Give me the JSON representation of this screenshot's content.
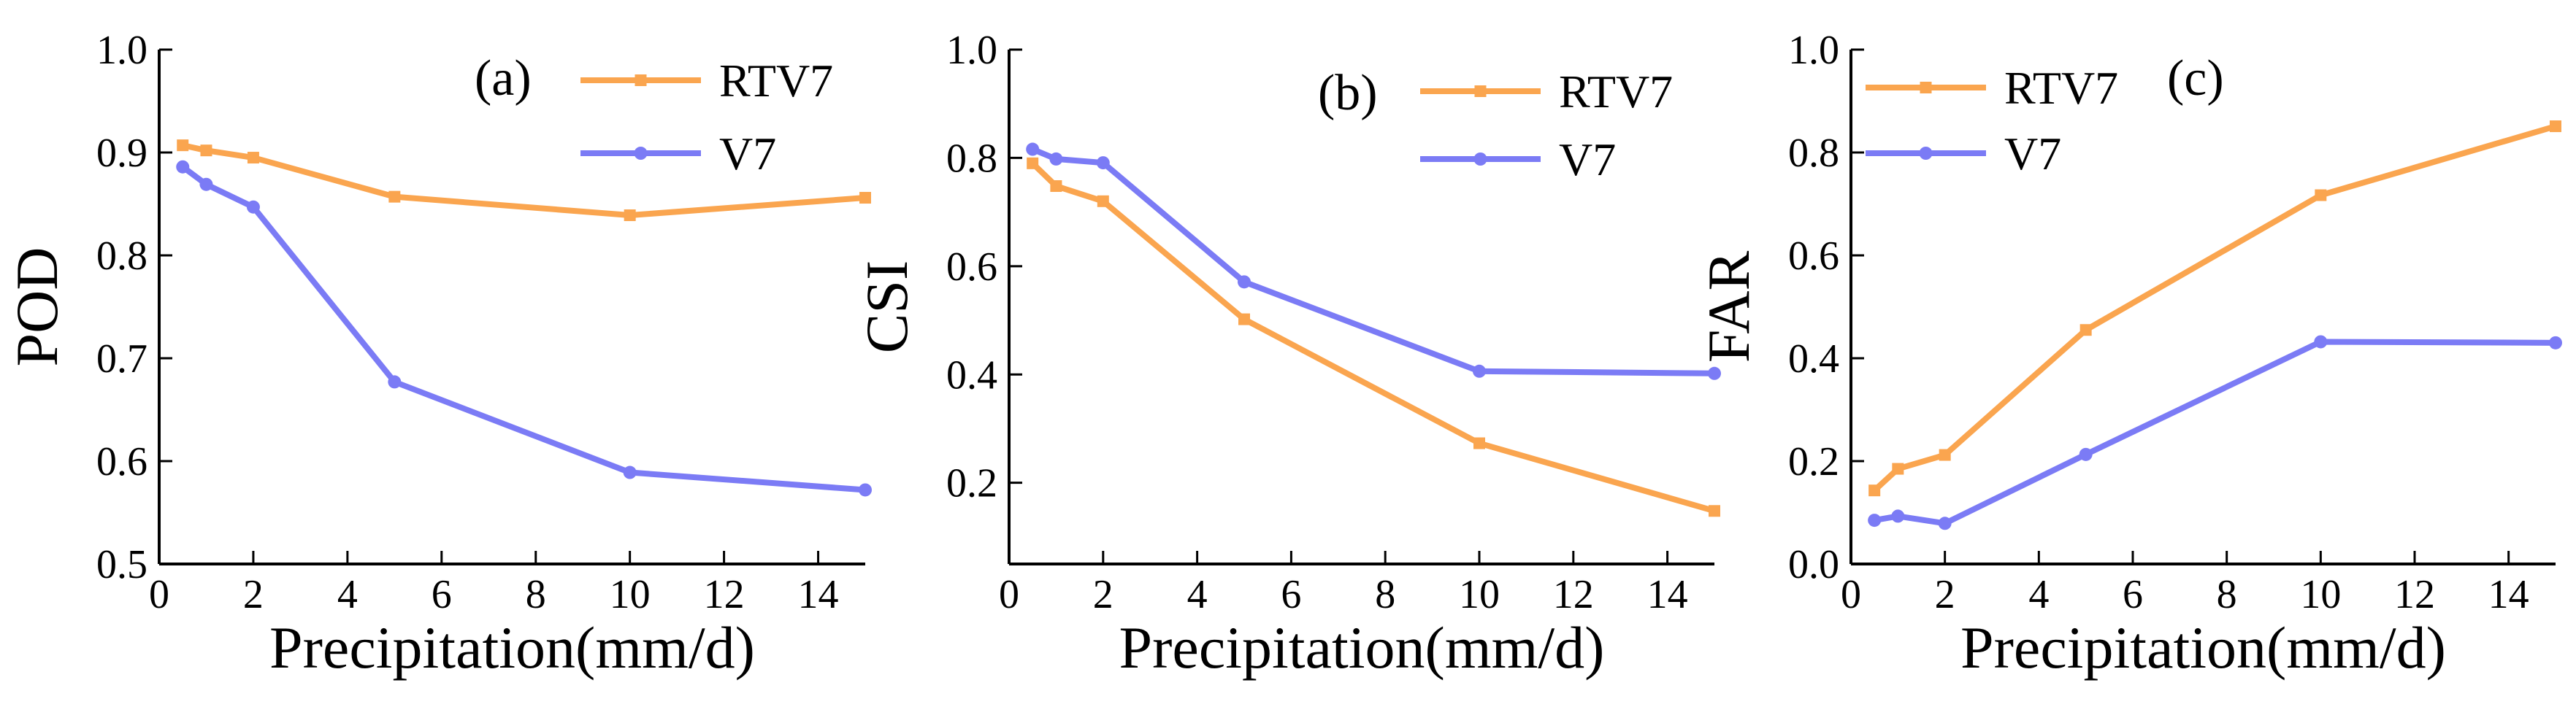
{
  "colors": {
    "rtv7": "#FAA54F",
    "v7": "#7B7BF5",
    "axis": "#000000"
  },
  "chart_data": [
    {
      "type": "line",
      "panel_label": "(a)",
      "xlabel": "Precipitation(mm/d)",
      "ylabel": "POD",
      "xlim": [
        0,
        15
      ],
      "ylim": [
        0.5,
        1.0
      ],
      "xticks": [
        0,
        2,
        4,
        6,
        8,
        10,
        12,
        14
      ],
      "xtick_labels": [
        "0",
        "2",
        "4",
        "6",
        "8",
        "10",
        "12",
        "14"
      ],
      "yticks": [
        0.5,
        0.6,
        0.7,
        0.8,
        0.9,
        1.0
      ],
      "ytick_labels": [
        "0.5",
        "0.6",
        "0.7",
        "0.8",
        "0.9",
        "1.0"
      ],
      "legend_position": "top-right",
      "x": [
        0.5,
        1,
        2,
        5,
        10,
        15
      ],
      "series": [
        {
          "name": "RTV7",
          "key": "rtv7",
          "marker": "square",
          "values": [
            0.907,
            0.902,
            0.895,
            0.857,
            0.839,
            0.856
          ]
        },
        {
          "name": "V7",
          "key": "v7",
          "marker": "circle",
          "values": [
            0.886,
            0.869,
            0.847,
            0.677,
            0.589,
            0.572
          ]
        }
      ]
    },
    {
      "type": "line",
      "panel_label": "(b)",
      "xlabel": "Precipitation(mm/d)",
      "ylabel": "CSI",
      "xlim": [
        0,
        15
      ],
      "ylim": [
        0.05,
        1.0
      ],
      "xticks": [
        0,
        2,
        4,
        6,
        8,
        10,
        12,
        14
      ],
      "xtick_labels": [
        "0",
        "2",
        "4",
        "6",
        "8",
        "10",
        "12",
        "14"
      ],
      "yticks": [
        0.2,
        0.4,
        0.6,
        0.8,
        1.0
      ],
      "ytick_labels": [
        "0.2",
        "0.4",
        "0.6",
        "0.8",
        "1.0"
      ],
      "legend_position": "top-right",
      "x": [
        0.5,
        1,
        2,
        5,
        10,
        15
      ],
      "series": [
        {
          "name": "RTV7",
          "key": "rtv7",
          "marker": "square",
          "values": [
            0.79,
            0.748,
            0.72,
            0.502,
            0.273,
            0.148
          ]
        },
        {
          "name": "V7",
          "key": "v7",
          "marker": "circle",
          "values": [
            0.816,
            0.798,
            0.791,
            0.571,
            0.406,
            0.402
          ]
        }
      ]
    },
    {
      "type": "line",
      "panel_label": "(c)",
      "xlabel": "Precipitation(mm/d)",
      "ylabel": "FAR",
      "xlim": [
        0,
        15
      ],
      "ylim": [
        0.0,
        1.0
      ],
      "xticks": [
        0,
        2,
        4,
        6,
        8,
        10,
        12,
        14
      ],
      "xtick_labels": [
        "0",
        "2",
        "4",
        "6",
        "8",
        "10",
        "12",
        "14"
      ],
      "yticks": [
        0.0,
        0.2,
        0.4,
        0.6,
        0.8,
        1.0
      ],
      "ytick_labels": [
        "0.0",
        "0.2",
        "0.4",
        "0.6",
        "0.8",
        "1.0"
      ],
      "legend_position": "top-left",
      "x": [
        0.5,
        1,
        2,
        5,
        10,
        15
      ],
      "series": [
        {
          "name": "RTV7",
          "key": "rtv7",
          "marker": "square",
          "values": [
            0.143,
            0.185,
            0.212,
            0.455,
            0.717,
            0.851
          ]
        },
        {
          "name": "V7",
          "key": "v7",
          "marker": "circle",
          "values": [
            0.085,
            0.093,
            0.079,
            0.213,
            0.432,
            0.43
          ]
        }
      ]
    }
  ]
}
